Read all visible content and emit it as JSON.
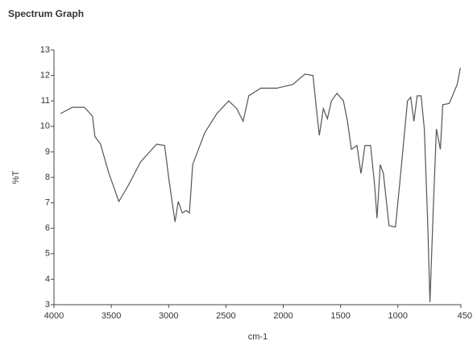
{
  "chart_data": {
    "type": "line",
    "title": "Spectrum Graph",
    "xlabel": "cm-1",
    "ylabel": "%T",
    "xlim": [
      4000,
      450
    ],
    "ylim": [
      3,
      13
    ],
    "xticks": [
      4000,
      3500,
      3000,
      2500,
      2000,
      1500,
      1000,
      450
    ],
    "yticks": [
      3,
      4,
      5,
      6,
      7,
      8,
      9,
      10,
      11,
      12,
      13
    ],
    "grid": false,
    "series": [
      {
        "name": "%T",
        "color": "#555555",
        "x": [
          3944,
          3839,
          3734,
          3664,
          3643,
          3594,
          3524,
          3434,
          3350,
          3245,
          3105,
          3035,
          3000,
          2965,
          2944,
          2916,
          2881,
          2846,
          2818,
          2790,
          2685,
          2580,
          2476,
          2406,
          2350,
          2301,
          2196,
          2056,
          1916,
          1811,
          1741,
          1706,
          1685,
          1650,
          1615,
          1580,
          1531,
          1475,
          1440,
          1405,
          1357,
          1322,
          1287,
          1238,
          1203,
          1182,
          1154,
          1126,
          1077,
          1021,
          972,
          916,
          888,
          860,
          832,
          797,
          769,
          741,
          720,
          692,
          664,
          629,
          608,
          552,
          482,
          455
        ],
        "values": [
          10.5,
          10.75,
          10.75,
          10.4,
          9.6,
          9.3,
          8.2,
          7.05,
          7.7,
          8.6,
          9.3,
          9.25,
          8.0,
          6.9,
          6.25,
          7.05,
          6.6,
          6.7,
          6.6,
          8.5,
          9.75,
          10.5,
          11.0,
          10.7,
          10.2,
          11.2,
          11.5,
          11.5,
          11.65,
          12.05,
          12.0,
          10.5,
          9.65,
          10.7,
          10.3,
          11.0,
          11.3,
          11.0,
          10.2,
          9.1,
          9.25,
          8.15,
          9.25,
          9.25,
          7.7,
          6.4,
          8.5,
          8.15,
          6.1,
          6.05,
          8.3,
          11.0,
          11.15,
          10.2,
          11.2,
          11.2,
          9.9,
          6.4,
          3.1,
          6.7,
          9.9,
          9.1,
          10.85,
          10.9,
          11.65,
          12.3
        ]
      }
    ]
  }
}
